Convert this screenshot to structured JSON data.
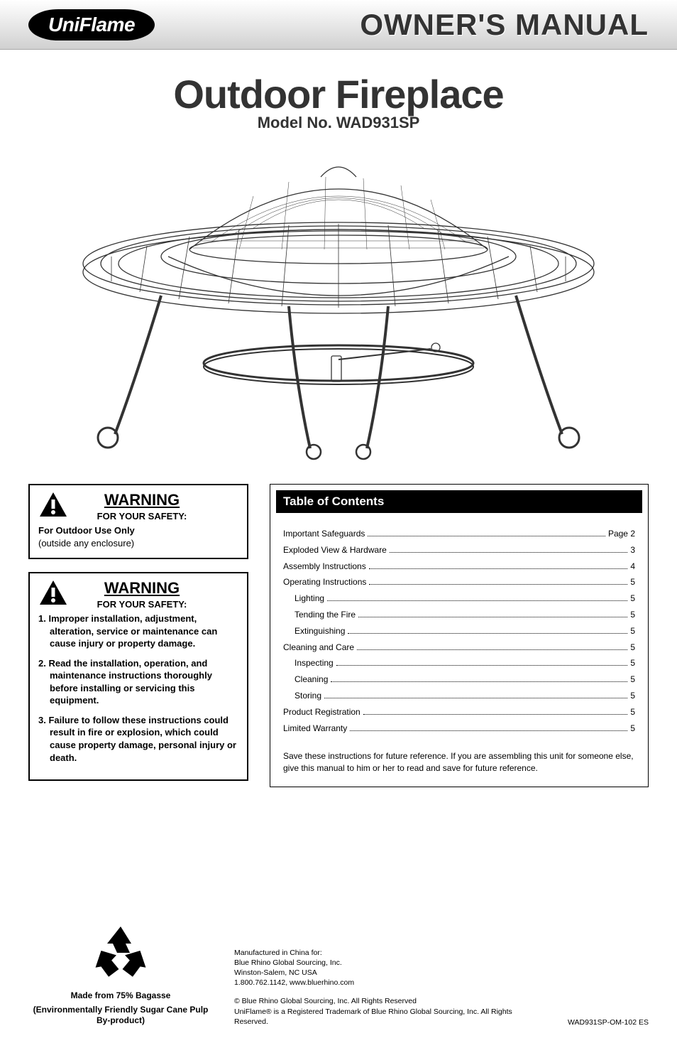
{
  "header": {
    "logo_text": "UniFlame",
    "manual_title": "OWNER'S MANUAL"
  },
  "title": {
    "product_name": "Outdoor Fireplace",
    "model_line": "Model No. WAD931SP"
  },
  "product_figure": {
    "stroke_color": "#333333",
    "fill_color": "#ffffff"
  },
  "warning1": {
    "title": "WARNING",
    "subtitle": "FOR YOUR SAFETY:",
    "line1_bold": "For Outdoor Use Only",
    "line2": "(outside any enclosure)"
  },
  "warning2": {
    "title": "WARNING",
    "subtitle": "FOR YOUR SAFETY:",
    "items": [
      "1. Improper installation, adjustment, alteration, service or maintenance can cause injury or property damage.",
      "2. Read the installation, operation, and maintenance instructions thoroughly before installing or servicing this equipment.",
      "3. Failure to follow these instructions could result in fire or explosion, which could cause property damage, personal injury or death."
    ]
  },
  "toc": {
    "header": "Table of Contents",
    "items": [
      {
        "label": "Important Safeguards",
        "page": "Page 2",
        "indent": false
      },
      {
        "label": "Exploded View & Hardware",
        "page": "3",
        "indent": false
      },
      {
        "label": "Assembly Instructions",
        "page": "4",
        "indent": false
      },
      {
        "label": "Operating Instructions",
        "page": "5",
        "indent": false
      },
      {
        "label": "Lighting",
        "page": "5",
        "indent": true
      },
      {
        "label": "Tending the Fire",
        "page": "5",
        "indent": true
      },
      {
        "label": "Extinguishing",
        "page": "5",
        "indent": true
      },
      {
        "label": "Cleaning and Care",
        "page": "5",
        "indent": false
      },
      {
        "label": "Inspecting",
        "page": "5",
        "indent": true
      },
      {
        "label": "Cleaning",
        "page": "5",
        "indent": true
      },
      {
        "label": "Storing",
        "page": "5",
        "indent": true
      },
      {
        "label": "Product Registration",
        "page": "5",
        "indent": false
      },
      {
        "label": "Limited Warranty",
        "page": "5",
        "indent": false
      }
    ],
    "note": "Save these instructions for future reference.   If you are assembling this unit for someone else,  give this manual to him or her to read and save for future reference."
  },
  "recycle": {
    "line1": "Made from 75% Bagasse",
    "line2": "(Environmentally Friendly Sugar Cane Pulp By-product)"
  },
  "mfr": {
    "l1": "Manufactured in China for:",
    "l2": "Blue Rhino Global Sourcing, Inc.",
    "l3": "Winston-Salem, NC USA",
    "l4": "1.800.762.1142, www.bluerhino.com",
    "c1": "© Blue Rhino Global Sourcing, Inc. All Rights Reserved",
    "c2": "UniFlame® is a Registered Trademark of Blue Rhino Global Sourcing, Inc. All Rights Reserved."
  },
  "doc_code": "WAD931SP-OM-102 ES",
  "colors": {
    "text": "#333333",
    "black": "#000000",
    "band_light": "#ffffff",
    "band_dark": "#d0d0d0"
  }
}
